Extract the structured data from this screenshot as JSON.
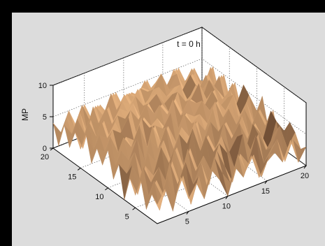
{
  "chart_data": {
    "type": "surface",
    "title": "t = 0 h",
    "zlabel": "MP",
    "xlabel": "",
    "ylabel": "",
    "xlim": [
      1,
      20
    ],
    "ylim": [
      1,
      20
    ],
    "zlim": [
      0,
      10
    ],
    "x_ticks": [
      "5",
      "10",
      "15",
      "20"
    ],
    "y_ticks": [
      "5",
      "10",
      "15",
      "20"
    ],
    "z_ticks": [
      "0",
      "5",
      "10"
    ],
    "grid": true,
    "colormap": "copper",
    "z": [
      [
        3,
        5,
        1,
        6,
        2,
        4,
        1,
        5,
        3,
        0,
        4,
        2,
        5,
        1,
        3,
        4,
        2,
        5,
        1,
        3
      ],
      [
        4,
        1,
        6,
        2,
        5,
        0,
        4,
        2,
        6,
        3,
        1,
        5,
        2,
        4,
        0,
        3,
        5,
        1,
        4,
        2
      ],
      [
        1,
        5,
        2,
        7,
        3,
        6,
        2,
        5,
        1,
        6,
        3,
        0,
        4,
        2,
        6,
        1,
        3,
        6,
        2,
        4
      ],
      [
        5,
        2,
        4,
        1,
        6,
        2,
        7,
        3,
        5,
        2,
        6,
        4,
        1,
        6,
        3,
        5,
        2,
        4,
        0,
        5
      ],
      [
        2,
        6,
        3,
        5,
        2,
        7,
        3,
        6,
        2,
        7,
        4,
        6,
        3,
        5,
        2,
        6,
        4,
        1,
        5,
        3
      ],
      [
        4,
        1,
        5,
        3,
        7,
        4,
        6,
        2,
        8,
        4,
        6,
        3,
        7,
        4,
        6,
        3,
        5,
        2,
        6,
        1
      ],
      [
        0,
        5,
        2,
        6,
        4,
        7,
        3,
        7,
        5,
        8,
        4,
        7,
        5,
        6,
        3,
        6,
        2,
        6,
        3,
        5
      ],
      [
        5,
        3,
        6,
        2,
        7,
        5,
        8,
        4,
        7,
        5,
        7,
        5,
        8,
        4,
        7,
        4,
        6,
        3,
        5,
        2
      ],
      [
        2,
        6,
        4,
        7,
        3,
        8,
        5,
        7,
        4,
        8,
        6,
        7,
        5,
        8,
        5,
        7,
        4,
        6,
        2,
        6
      ],
      [
        6,
        3,
        7,
        5,
        8,
        4,
        7,
        6,
        8,
        5,
        7,
        6,
        8,
        6,
        7,
        5,
        7,
        3,
        6,
        3
      ],
      [
        3,
        7,
        4,
        6,
        5,
        8,
        6,
        7,
        5,
        9,
        6,
        8,
        7,
        6,
        8,
        5,
        6,
        4,
        7,
        2
      ],
      [
        5,
        4,
        7,
        6,
        8,
        5,
        7,
        5,
        8,
        6,
        8,
        5,
        7,
        9,
        6,
        7,
        5,
        6,
        3,
        5
      ],
      [
        2,
        6,
        5,
        7,
        4,
        8,
        6,
        8,
        6,
        7,
        5,
        8,
        6,
        7,
        5,
        8,
        6,
        4,
        6,
        2
      ],
      [
        6,
        3,
        7,
        4,
        7,
        6,
        8,
        5,
        7,
        8,
        6,
        7,
        8,
        5,
        7,
        6,
        5,
        7,
        3,
        5
      ],
      [
        3,
        7,
        4,
        6,
        5,
        7,
        6,
        8,
        6,
        7,
        8,
        6,
        7,
        6,
        8,
        5,
        7,
        4,
        6,
        2
      ],
      [
        5,
        2,
        6,
        5,
        7,
        4,
        7,
        6,
        8,
        5,
        7,
        9,
        6,
        8,
        5,
        7,
        4,
        6,
        3,
        5
      ],
      [
        2,
        6,
        3,
        7,
        4,
        6,
        5,
        7,
        5,
        7,
        6,
        7,
        5,
        7,
        6,
        5,
        6,
        3,
        6,
        2
      ],
      [
        5,
        3,
        6,
        2,
        6,
        4,
        7,
        4,
        6,
        5,
        6,
        5,
        6,
        4,
        7,
        4,
        5,
        4,
        3,
        5
      ],
      [
        1,
        5,
        3,
        6,
        3,
        5,
        3,
        6,
        3,
        5,
        4,
        6,
        3,
        5,
        3,
        6,
        3,
        5,
        2,
        3
      ],
      [
        4,
        2,
        5,
        2,
        5,
        2,
        4,
        2,
        5,
        2,
        4,
        3,
        5,
        2,
        4,
        2,
        5,
        2,
        4,
        1
      ]
    ]
  }
}
